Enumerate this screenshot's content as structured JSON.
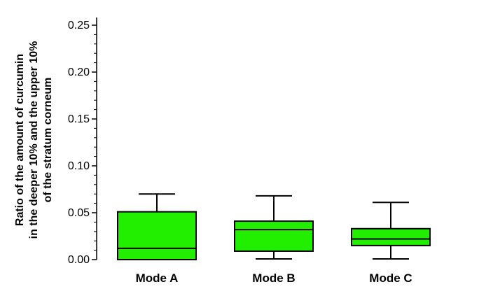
{
  "chart_data": {
    "type": "box",
    "categories": [
      "Mode A",
      "Mode B",
      "Mode C"
    ],
    "boxes": [
      {
        "category": "Mode A",
        "min": 0.0,
        "q1": 0.0,
        "median": 0.012,
        "q3": 0.051,
        "max": 0.07
      },
      {
        "category": "Mode B",
        "min": 0.0,
        "q1": 0.009,
        "median": 0.032,
        "q3": 0.041,
        "max": 0.068
      },
      {
        "category": "Mode C",
        "min": 0.0,
        "q1": 0.015,
        "median": 0.022,
        "q3": 0.033,
        "max": 0.061
      }
    ],
    "ylabel_lines": [
      "Ratio of the amount of curcumin",
      "in the deeper 10% and the upper 10%",
      "of the stratum corneum"
    ],
    "ylim": [
      0,
      0.25
    ],
    "yticks": [
      "0.00",
      "0.05",
      "0.10",
      "0.15",
      "0.20",
      "0.25"
    ],
    "grid": false,
    "box_color": "#22ee00"
  }
}
